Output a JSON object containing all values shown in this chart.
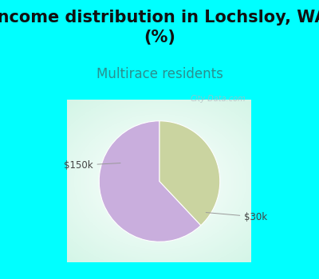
{
  "title": "Income distribution in Lochsloy, WA\n(%)",
  "subtitle": "Multirace residents",
  "title_color": "#111111",
  "subtitle_color": "#2a9090",
  "title_bg_color": "#00FFFF",
  "slices": [
    62,
    38
  ],
  "slice_labels": [
    "$30k",
    "$150k"
  ],
  "slice_colors": [
    "#c9aedd",
    "#cad4a0"
  ],
  "label_color": "#444444",
  "watermark": "City-Data.com",
  "startangle": 90,
  "title_fontsize": 15,
  "subtitle_fontsize": 12,
  "panel_bg": "#ffffff",
  "panel_border": "#00FFFF"
}
